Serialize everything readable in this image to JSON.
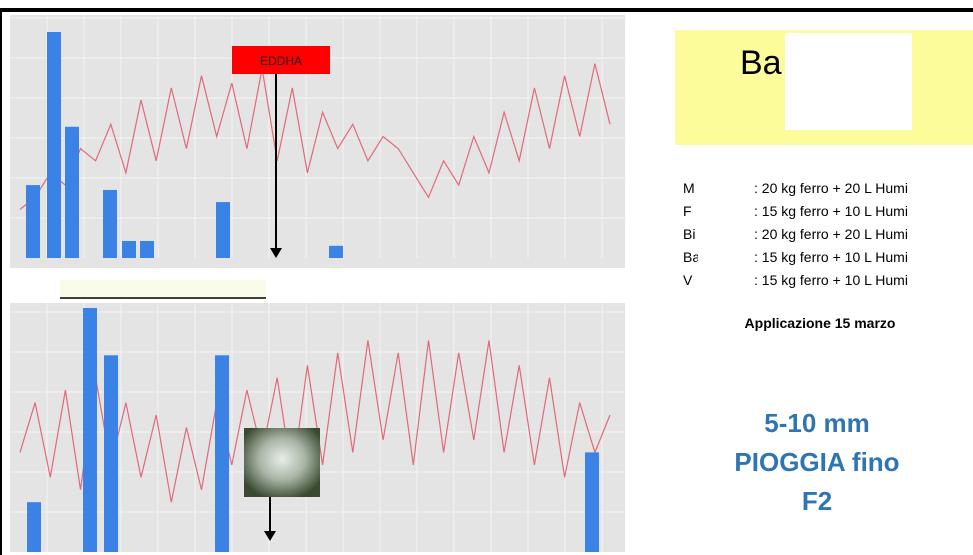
{
  "chart_data": [
    {
      "type": "combo",
      "annotation": "EDDHA",
      "ylim": [
        0,
        100
      ],
      "series": [
        {
          "color": "#3b82e6",
          "values": [
            30,
            93,
            54,
            28,
            7,
            7,
            23,
            5
          ]
        },
        {
          "color": "#e06a7a",
          "values": [
            20,
            25,
            35,
            30,
            45,
            40,
            55,
            35,
            65,
            40,
            70,
            45,
            75,
            50,
            72,
            45,
            78,
            40,
            70,
            35,
            60,
            45,
            55,
            40,
            50,
            45,
            35,
            25,
            40,
            30,
            50,
            35,
            60,
            40,
            70,
            45,
            75,
            50,
            80,
            55
          ]
        }
      ]
    },
    {
      "type": "combo",
      "ylim": [
        0,
        100
      ],
      "series": [
        {
          "color": "#3b82e6",
          "values": [
            20,
            98,
            79,
            79,
            40
          ]
        },
        {
          "color": "#e06a7a",
          "values": [
            40,
            60,
            30,
            65,
            25,
            70,
            35,
            60,
            30,
            55,
            20,
            50,
            25,
            60,
            35,
            65,
            40,
            70,
            30,
            75,
            35,
            80,
            40,
            85,
            45,
            80,
            35,
            85,
            40,
            80,
            45,
            85,
            40,
            75,
            35,
            70,
            30,
            60,
            40,
            55
          ]
        }
      ]
    }
  ],
  "box_title": "Ba",
  "treatments": [
    {
      "name": "M",
      "detail": ": 20 kg ferro + 20 L Humi"
    },
    {
      "name": "F",
      "detail": ": 15 kg ferro + 10 L Humi"
    },
    {
      "name": "Bi",
      "detail": ": 20 kg ferro + 20 L Humi"
    },
    {
      "name": "Ba",
      "detail": ": 15 kg ferro + 10 L Humi"
    },
    {
      "name": "V",
      "detail": ": 15 kg ferro + 10 L Humi"
    }
  ],
  "note": "Applicazione 15 marzo",
  "rain": [
    "5-10 mm",
    "PIOGGIA fino",
    "F2"
  ]
}
